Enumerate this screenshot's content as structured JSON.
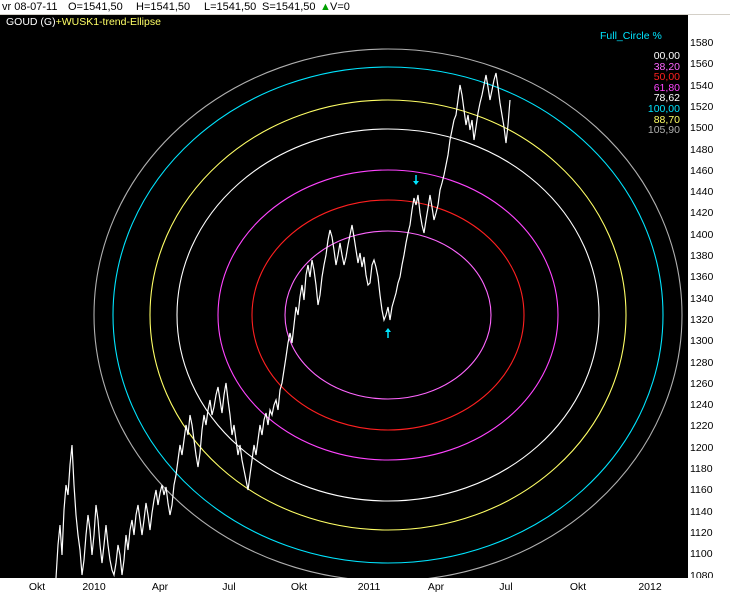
{
  "topbar": {
    "date": "vr 08-07-11",
    "open": "O=1541,50",
    "high": "H=1541,50",
    "low": "L=1541,50",
    "close": "S=1541,50",
    "volume": "V=0"
  },
  "chart": {
    "instrument": "GOUD (G)",
    "indicator": "+WUSK1-trend-Ellipse",
    "legend_title": "Full_Circle %",
    "legend": [
      {
        "label": "00,00",
        "color": "#ffffff"
      },
      {
        "label": "38,20",
        "color": "#ff66ff"
      },
      {
        "label": "50,00",
        "color": "#ff2020"
      },
      {
        "label": "61,80",
        "color": "#ff44ff"
      },
      {
        "label": "78,62",
        "color": "#ffffff"
      },
      {
        "label": "100,00",
        "color": "#00e5ff"
      },
      {
        "label": "88,70",
        "color": "#ffff66"
      },
      {
        "label": "105,90",
        "color": "#b0b0b0"
      }
    ],
    "y_ticks": [
      "1580",
      "1560",
      "1540",
      "1520",
      "1500",
      "1480",
      "1460",
      "1440",
      "1420",
      "1400",
      "1380",
      "1360",
      "1340",
      "1320",
      "1300",
      "1280",
      "1260",
      "1240",
      "1220",
      "1200",
      "1180",
      "1160",
      "1140",
      "1120",
      "1100",
      "1080"
    ],
    "x_ticks": [
      "Okt",
      "2010",
      "Apr",
      "Jul",
      "Okt",
      "2011",
      "Apr",
      "Jul",
      "Okt",
      "2012"
    ],
    "rings": [
      {
        "level": "38,20",
        "color": "#ff66ff"
      },
      {
        "level": "50,00",
        "color": "#ff2020"
      },
      {
        "level": "61,80",
        "color": "#ff44ff"
      },
      {
        "level": "78,62",
        "color": "#ffffff"
      },
      {
        "level": "88,70",
        "color": "#ffff66"
      },
      {
        "level": "100,00",
        "color": "#00e5ff"
      },
      {
        "level": "105,90",
        "color": "#b0b0b0"
      }
    ],
    "markers": [
      {
        "type": "arrow-up",
        "color": "#00e5ff"
      },
      {
        "type": "arrow-down",
        "color": "#00e5ff"
      }
    ]
  }
}
